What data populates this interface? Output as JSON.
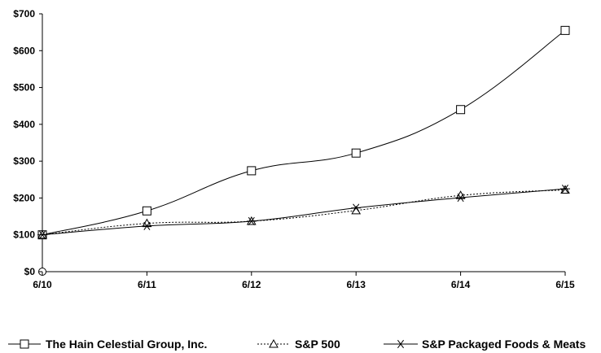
{
  "chart_data": {
    "type": "line",
    "title": "",
    "xlabel": "",
    "ylabel": "",
    "categories": [
      "6/10",
      "6/11",
      "6/12",
      "6/13",
      "6/14",
      "6/15"
    ],
    "ylim": [
      0,
      700
    ],
    "yticks": [
      0,
      100,
      200,
      300,
      400,
      500,
      600,
      700
    ],
    "ytick_labels": [
      "$0",
      "$100",
      "$200",
      "$300",
      "$400",
      "$500",
      "$600",
      "$700"
    ],
    "grid": false,
    "legend_position": "bottom",
    "series": [
      {
        "name": "The Hain Celestial Group, Inc.",
        "marker": "square",
        "line_style": "solid",
        "color": "#000000",
        "values": [
          100,
          165,
          274,
          322,
          440,
          655
        ]
      },
      {
        "name": "S&P 500",
        "marker": "triangle",
        "line_style": "dotted",
        "color": "#000000",
        "values": [
          100,
          131,
          137,
          166,
          207,
          222
        ]
      },
      {
        "name": "S&P Packaged Foods & Meats",
        "marker": "asterisk",
        "line_style": "solid",
        "color": "#000000",
        "values": [
          100,
          124,
          137,
          173,
          201,
          225
        ]
      }
    ]
  }
}
